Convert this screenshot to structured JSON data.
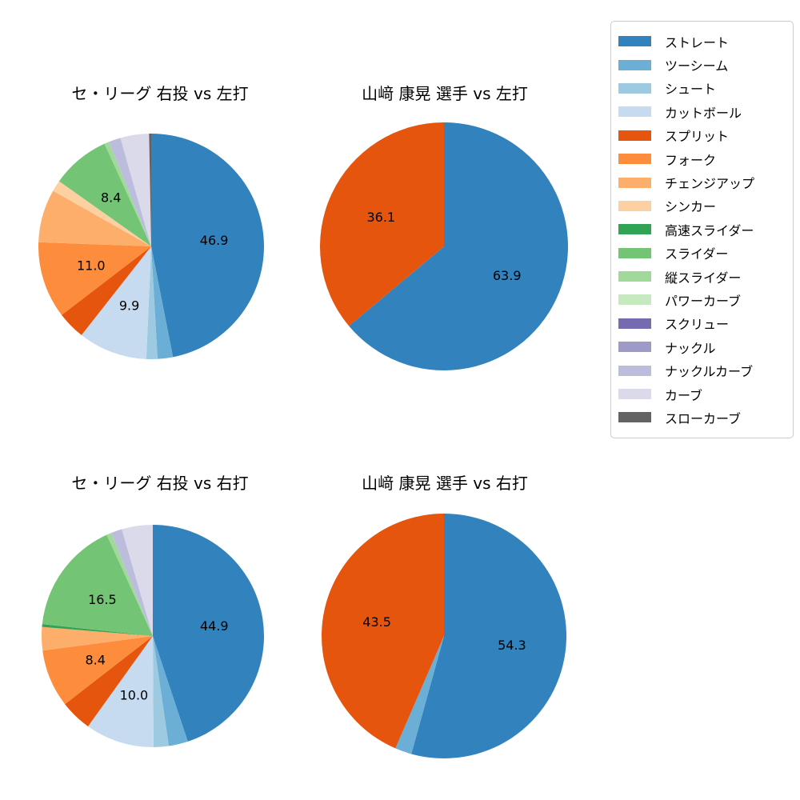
{
  "chart_data": {
    "type": "pie",
    "unit": "percent",
    "background": "#ffffff",
    "label_color": "#000000",
    "title_color": "#000000",
    "legend": {
      "position": "upper right",
      "border_color": "#cccccc",
      "items": [
        {
          "label": "ストレート",
          "color": "#3182bd"
        },
        {
          "label": "ツーシーム",
          "color": "#6baed6"
        },
        {
          "label": "シュート",
          "color": "#9ecae1"
        },
        {
          "label": "カットボール",
          "color": "#c6dbef"
        },
        {
          "label": "スプリット",
          "color": "#e6550d"
        },
        {
          "label": "フォーク",
          "color": "#fd8d3c"
        },
        {
          "label": "チェンジアップ",
          "color": "#fdae6b"
        },
        {
          "label": "シンカー",
          "color": "#fdd0a2"
        },
        {
          "label": "高速スライダー",
          "color": "#31a354"
        },
        {
          "label": "スライダー",
          "color": "#74c476"
        },
        {
          "label": "縦スライダー",
          "color": "#a1d99b"
        },
        {
          "label": "パワーカーブ",
          "color": "#c7e9c0"
        },
        {
          "label": "スクリュー",
          "color": "#756bb1"
        },
        {
          "label": "ナックル",
          "color": "#9e9ac8"
        },
        {
          "label": "ナックルカーブ",
          "color": "#bcbddc"
        },
        {
          "label": "カーブ",
          "color": "#dadaeb"
        },
        {
          "label": "スローカーブ",
          "color": "#636363"
        }
      ]
    },
    "charts": [
      {
        "title": "セ・リーグ 右投 vs 左打",
        "slices": [
          {
            "name": "ストレート",
            "value": 46.9,
            "label": "46.9"
          },
          {
            "name": "ツーシーム",
            "value": 2.2
          },
          {
            "name": "シュート",
            "value": 1.6
          },
          {
            "name": "カットボール",
            "value": 9.9,
            "label": "9.9"
          },
          {
            "name": "スプリット",
            "value": 4.0
          },
          {
            "name": "フォーク",
            "value": 11.0,
            "label": "11.0"
          },
          {
            "name": "チェンジアップ",
            "value": 7.6
          },
          {
            "name": "シンカー",
            "value": 1.6
          },
          {
            "name": "スライダー",
            "value": 8.4,
            "label": "8.4"
          },
          {
            "name": "縦スライダー",
            "value": 0.7
          },
          {
            "name": "ナックルカーブ",
            "value": 1.7
          },
          {
            "name": "カーブ",
            "value": 4.1
          },
          {
            "name": "スローカーブ",
            "value": 0.3
          }
        ]
      },
      {
        "title": "山﨑 康晃 選手 vs 左打",
        "slices": [
          {
            "name": "ストレート",
            "value": 63.9,
            "label": "63.9"
          },
          {
            "name": "スプリット",
            "value": 36.1,
            "label": "36.1"
          }
        ]
      },
      {
        "title": "セ・リーグ 右投 vs 右打",
        "slices": [
          {
            "name": "ストレート",
            "value": 44.9,
            "label": "44.9"
          },
          {
            "name": "ツーシーム",
            "value": 2.8
          },
          {
            "name": "シュート",
            "value": 2.2
          },
          {
            "name": "カットボール",
            "value": 10.0,
            "label": "10.0"
          },
          {
            "name": "スプリット",
            "value": 4.6
          },
          {
            "name": "フォーク",
            "value": 8.4,
            "label": "8.4"
          },
          {
            "name": "チェンジアップ",
            "value": 3.4
          },
          {
            "name": "高速スライダー",
            "value": 0.4
          },
          {
            "name": "スライダー",
            "value": 16.5,
            "label": "16.5"
          },
          {
            "name": "縦スライダー",
            "value": 0.7
          },
          {
            "name": "ナックルカーブ",
            "value": 1.6
          },
          {
            "name": "カーブ",
            "value": 4.5
          }
        ]
      },
      {
        "title": "山﨑 康晃 選手 vs 右打",
        "slices": [
          {
            "name": "ストレート",
            "value": 54.3,
            "label": "54.3"
          },
          {
            "name": "ツーシーム",
            "value": 2.2
          },
          {
            "name": "スプリット",
            "value": 43.5,
            "label": "43.5"
          }
        ]
      }
    ]
  }
}
